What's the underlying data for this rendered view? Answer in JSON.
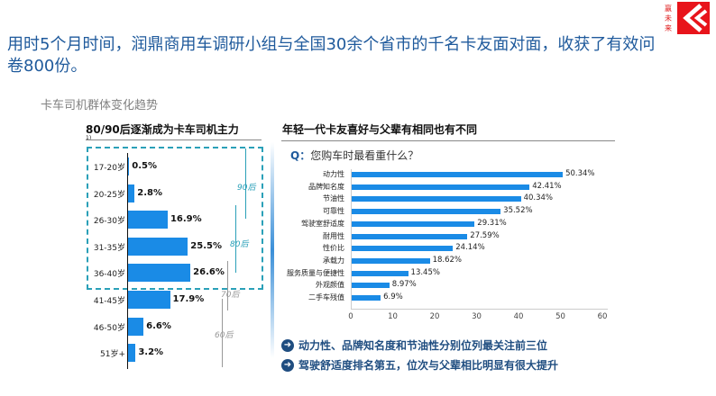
{
  "header": {
    "headline": "用时5个月时间，润鼎商用车调研小组与全国30余个省市的千名卡友面对面，收获了有效问卷800份。",
    "subtitle": "卡车司机群体变化趋势"
  },
  "logo": {
    "text": "赢未来",
    "color": "#e8141b"
  },
  "left_chart": {
    "title": "80/90后逐渐成为卡车司机主力",
    "note": "1)",
    "chart_data": {
      "type": "bar",
      "orientation": "horizontal",
      "categories": [
        "17-20岁",
        "20-25岁",
        "26-30岁",
        "31-35岁",
        "36-40岁",
        "41-45岁",
        "46-50岁",
        "51岁+"
      ],
      "values": [
        0.5,
        2.8,
        16.9,
        25.5,
        26.6,
        17.9,
        6.6,
        3.2
      ],
      "labels": [
        "0.5%",
        "2.8%",
        "16.9%",
        "25.5%",
        "26.6%",
        "17.9%",
        "6.6%",
        "3.2%"
      ],
      "color": "#1a8be6"
    },
    "generations": [
      {
        "label": "90后",
        "color": "#2aa0b8"
      },
      {
        "label": "80后",
        "color": "#2aa0b8"
      },
      {
        "label": "70后",
        "color": "#999999"
      },
      {
        "label": "60后",
        "color": "#999999"
      }
    ]
  },
  "right_chart": {
    "title": "年轻一代卡友喜好与父辈有相同也有不同",
    "q_prefix": "Q：",
    "question": "您购车时最看重什么？",
    "chart_data": {
      "type": "bar",
      "orientation": "horizontal",
      "categories": [
        "动力性",
        "品牌知名度",
        "节油性",
        "可靠性",
        "驾驶室舒适度",
        "耐用性",
        "性价比",
        "承载力",
        "服务质量与便捷性",
        "外观颜值",
        "二手车残值"
      ],
      "values": [
        50.34,
        42.41,
        40.34,
        35.52,
        29.31,
        27.59,
        24.14,
        18.62,
        13.45,
        8.97,
        6.9
      ],
      "labels": [
        "50.34%",
        "42.41%",
        "40.34%",
        "35.52%",
        "29.31%",
        "27.59%",
        "24.14%",
        "18.62%",
        "13.45%",
        "8.97%",
        "6.9%"
      ],
      "xlim": [
        0,
        60
      ],
      "xticks": [
        "0",
        "10",
        "20",
        "30",
        "40",
        "50",
        "60"
      ],
      "color": "#1a8be6"
    },
    "bullets": [
      "动力性、品牌知名度和节油性分别位列最关注前三位",
      "驾驶舒适度排名第五，位次与父辈相比明显有很大提升"
    ]
  }
}
